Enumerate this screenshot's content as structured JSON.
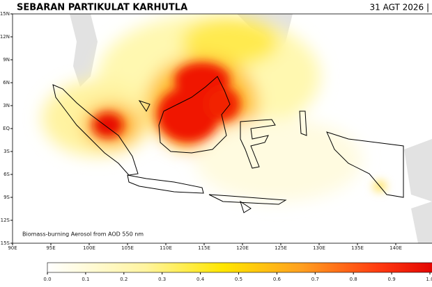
{
  "header": {
    "title": "SEBARAN PARTIKULAT KARHUTLA",
    "date": "31 AGT 2026 |"
  },
  "map": {
    "lat_labels": [
      "15N",
      "12N",
      "9N",
      "6N",
      "3N",
      "EQ",
      "3S",
      "6S",
      "9S",
      "12S",
      "15S"
    ],
    "lon_labels": [
      "90E",
      "95E",
      "100E",
      "105E",
      "110E",
      "115E",
      "120E",
      "125E",
      "130E",
      "135E",
      "140E"
    ],
    "annotation": "Biomass-burning Aerosol from AOD 550 nm"
  },
  "colorbar": {
    "ticks": [
      {
        "value": 0,
        "label": "0.0"
      },
      0.1,
      0.2,
      0.3,
      0.4,
      0.5,
      0.6,
      0.7,
      0.8,
      0.9,
      {
        "value": 1,
        "label": "1.0"
      }
    ]
  }
}
